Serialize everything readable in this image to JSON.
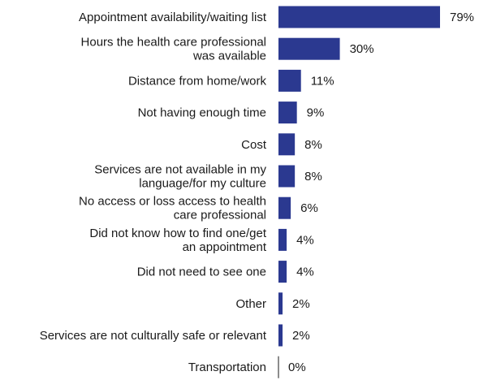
{
  "chart_data": {
    "type": "bar",
    "orientation": "horizontal",
    "categories": [
      [
        "Appointment availability/waiting list"
      ],
      [
        "Hours the health care professional",
        "was available"
      ],
      [
        "Distance from home/work"
      ],
      [
        "Not having enough time"
      ],
      [
        "Cost"
      ],
      [
        "Services are not available in my",
        "language/for my culture"
      ],
      [
        "No access or loss access to health",
        "care professional"
      ],
      [
        "Did not know how to find one/get",
        "an appointment"
      ],
      [
        "Did not need to see one"
      ],
      [
        "Other"
      ],
      [
        "Services are not culturally safe or relevant"
      ],
      [
        "Transportation"
      ]
    ],
    "values": [
      79,
      30,
      11,
      9,
      8,
      8,
      6,
      4,
      4,
      2,
      2,
      0
    ],
    "value_labels": [
      "79%",
      "30%",
      "11%",
      "9%",
      "8%",
      "8%",
      "6%",
      "4%",
      "4%",
      "2%",
      "2%",
      "0%"
    ],
    "xlim": [
      0,
      79
    ],
    "grid": false,
    "legend": "none",
    "bar_color": "#2b3990",
    "axis_color": "#1a1a1a"
  }
}
